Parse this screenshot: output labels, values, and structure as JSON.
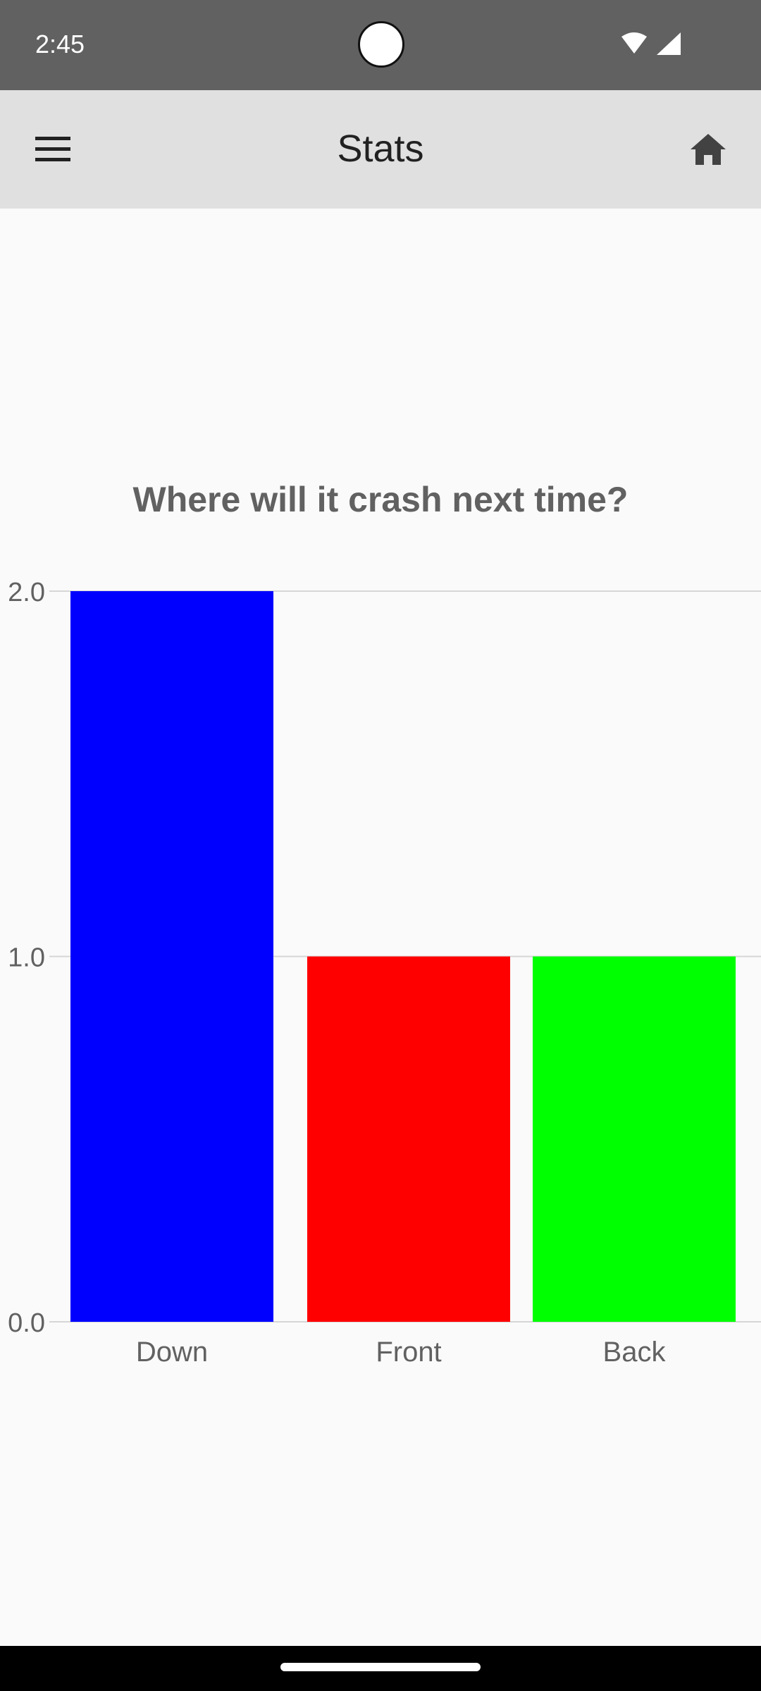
{
  "status_bar": {
    "time": "2:45",
    "icons": [
      "wifi-icon",
      "cellular-signal-icon"
    ]
  },
  "app_bar": {
    "title": "Stats",
    "left_icon": "hamburger-menu-icon",
    "right_icon": "home-icon"
  },
  "chart_data": {
    "type": "bar",
    "title": "Where will it crash next time?",
    "categories": [
      "Down",
      "Front",
      "Back"
    ],
    "values": [
      2.0,
      1.0,
      1.0
    ],
    "colors": [
      "#0000ff",
      "#ff0000",
      "#00ff00"
    ],
    "ylim": [
      0.0,
      2.0
    ],
    "yticks": [
      "0.0",
      "1.0",
      "2.0"
    ],
    "xlabel": "",
    "ylabel": "",
    "grid": true
  },
  "colors": {
    "status_bar": "#616161",
    "app_bar": "#e0e0e0",
    "background": "#fafafa"
  }
}
